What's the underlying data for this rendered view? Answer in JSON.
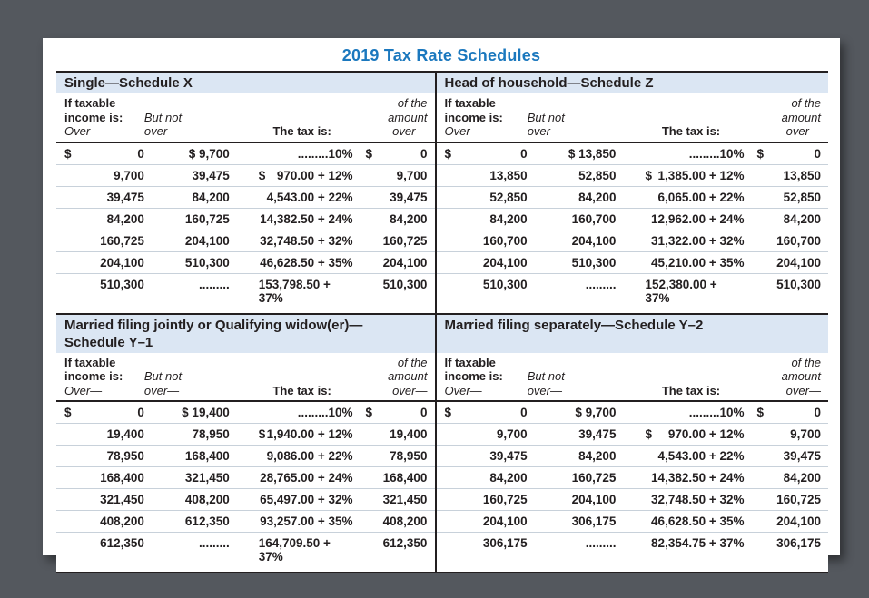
{
  "title": "2019 Tax Rate Schedules",
  "colors": {
    "title_blue": "#1b78be",
    "section_bar_blue": "#dbe6f3",
    "text_dark": "#231f20",
    "row_separator": "#c8d1da",
    "outer_background": "#54585e"
  },
  "column_headers": {
    "if_taxable": "If taxable",
    "income_is": "income is:",
    "over_left": "Over—",
    "but_not": "But not",
    "over_mid": "over—",
    "tax_is": "The tax is:",
    "of_the": "of the",
    "amount": "amount",
    "over_right": "over—"
  },
  "schedules": [
    {
      "title": "Single—Schedule X",
      "rows": [
        {
          "over": "0",
          "over_dollar": true,
          "but_not": "9,700",
          "but_not_dollar": true,
          "tax": ".........10%",
          "tax_dollar": false,
          "amount": "0",
          "amount_dollar": true
        },
        {
          "over": "9,700",
          "over_dollar": false,
          "but_not": "39,475",
          "but_not_dollar": false,
          "tax": "970.00 + 12%",
          "tax_dollar": true,
          "amount": "9,700",
          "amount_dollar": false
        },
        {
          "over": "39,475",
          "over_dollar": false,
          "but_not": "84,200",
          "but_not_dollar": false,
          "tax": "4,543.00 + 22%",
          "tax_dollar": false,
          "amount": "39,475",
          "amount_dollar": false
        },
        {
          "over": "84,200",
          "over_dollar": false,
          "but_not": "160,725",
          "but_not_dollar": false,
          "tax": "14,382.50 + 24%",
          "tax_dollar": false,
          "amount": "84,200",
          "amount_dollar": false
        },
        {
          "over": "160,725",
          "over_dollar": false,
          "but_not": "204,100",
          "but_not_dollar": false,
          "tax": "32,748.50 + 32%",
          "tax_dollar": false,
          "amount": "160,725",
          "amount_dollar": false
        },
        {
          "over": "204,100",
          "over_dollar": false,
          "but_not": "510,300",
          "but_not_dollar": false,
          "tax": "46,628.50 + 35%",
          "tax_dollar": false,
          "amount": "204,100",
          "amount_dollar": false
        },
        {
          "over": "510,300",
          "over_dollar": false,
          "but_not": ".........",
          "but_not_dollar": false,
          "tax": "153,798.50 + 37%",
          "tax_dollar": false,
          "amount": "510,300",
          "amount_dollar": false
        }
      ]
    },
    {
      "title": "Head of household—Schedule Z",
      "rows": [
        {
          "over": "0",
          "over_dollar": true,
          "but_not": "13,850",
          "but_not_dollar": true,
          "tax": ".........10%",
          "tax_dollar": false,
          "amount": "0",
          "amount_dollar": true
        },
        {
          "over": "13,850",
          "over_dollar": false,
          "but_not": "52,850",
          "but_not_dollar": false,
          "tax": "1,385.00 + 12%",
          "tax_dollar": true,
          "amount": "13,850",
          "amount_dollar": false
        },
        {
          "over": "52,850",
          "over_dollar": false,
          "but_not": "84,200",
          "but_not_dollar": false,
          "tax": "6,065.00 + 22%",
          "tax_dollar": false,
          "amount": "52,850",
          "amount_dollar": false
        },
        {
          "over": "84,200",
          "over_dollar": false,
          "but_not": "160,700",
          "but_not_dollar": false,
          "tax": "12,962.00 + 24%",
          "tax_dollar": false,
          "amount": "84,200",
          "amount_dollar": false
        },
        {
          "over": "160,700",
          "over_dollar": false,
          "but_not": "204,100",
          "but_not_dollar": false,
          "tax": "31,322.00 + 32%",
          "tax_dollar": false,
          "amount": "160,700",
          "amount_dollar": false
        },
        {
          "over": "204,100",
          "over_dollar": false,
          "but_not": "510,300",
          "but_not_dollar": false,
          "tax": "45,210.00 + 35%",
          "tax_dollar": false,
          "amount": "204,100",
          "amount_dollar": false
        },
        {
          "over": "510,300",
          "over_dollar": false,
          "but_not": ".........",
          "but_not_dollar": false,
          "tax": "152,380.00 + 37%",
          "tax_dollar": false,
          "amount": "510,300",
          "amount_dollar": false
        }
      ]
    },
    {
      "title": "Married filing jointly or Qualifying widow(er)—\nSchedule Y–1",
      "rows": [
        {
          "over": "0",
          "over_dollar": true,
          "but_not": "19,400",
          "but_not_dollar": true,
          "tax": ".........10%",
          "tax_dollar": false,
          "amount": "0",
          "amount_dollar": true
        },
        {
          "over": "19,400",
          "over_dollar": false,
          "but_not": "78,950",
          "but_not_dollar": false,
          "tax": "1,940.00 + 12%",
          "tax_dollar": true,
          "amount": "19,400",
          "amount_dollar": false
        },
        {
          "over": "78,950",
          "over_dollar": false,
          "but_not": "168,400",
          "but_not_dollar": false,
          "tax": "9,086.00 + 22%",
          "tax_dollar": false,
          "amount": "78,950",
          "amount_dollar": false
        },
        {
          "over": "168,400",
          "over_dollar": false,
          "but_not": "321,450",
          "but_not_dollar": false,
          "tax": "28,765.00 + 24%",
          "tax_dollar": false,
          "amount": "168,400",
          "amount_dollar": false
        },
        {
          "over": "321,450",
          "over_dollar": false,
          "but_not": "408,200",
          "but_not_dollar": false,
          "tax": "65,497.00 + 32%",
          "tax_dollar": false,
          "amount": "321,450",
          "amount_dollar": false
        },
        {
          "over": "408,200",
          "over_dollar": false,
          "but_not": "612,350",
          "but_not_dollar": false,
          "tax": "93,257.00 + 35%",
          "tax_dollar": false,
          "amount": "408,200",
          "amount_dollar": false
        },
        {
          "over": "612,350",
          "over_dollar": false,
          "but_not": ".........",
          "but_not_dollar": false,
          "tax": "164,709.50 + 37%",
          "tax_dollar": false,
          "amount": "612,350",
          "amount_dollar": false
        }
      ]
    },
    {
      "title": "Married filing separately—Schedule Y–2",
      "rows": [
        {
          "over": "0",
          "over_dollar": true,
          "but_not": "9,700",
          "but_not_dollar": true,
          "tax": ".........10%",
          "tax_dollar": false,
          "amount": "0",
          "amount_dollar": true
        },
        {
          "over": "9,700",
          "over_dollar": false,
          "but_not": "39,475",
          "but_not_dollar": false,
          "tax": "970.00 + 12%",
          "tax_dollar": true,
          "amount": "9,700",
          "amount_dollar": false
        },
        {
          "over": "39,475",
          "over_dollar": false,
          "but_not": "84,200",
          "but_not_dollar": false,
          "tax": "4,543.00 + 22%",
          "tax_dollar": false,
          "amount": "39,475",
          "amount_dollar": false
        },
        {
          "over": "84,200",
          "over_dollar": false,
          "but_not": "160,725",
          "but_not_dollar": false,
          "tax": "14,382.50 + 24%",
          "tax_dollar": false,
          "amount": "84,200",
          "amount_dollar": false
        },
        {
          "over": "160,725",
          "over_dollar": false,
          "but_not": "204,100",
          "but_not_dollar": false,
          "tax": "32,748.50 + 32%",
          "tax_dollar": false,
          "amount": "160,725",
          "amount_dollar": false
        },
        {
          "over": "204,100",
          "over_dollar": false,
          "but_not": "306,175",
          "but_not_dollar": false,
          "tax": "46,628.50 + 35%",
          "tax_dollar": false,
          "amount": "204,100",
          "amount_dollar": false
        },
        {
          "over": "306,175",
          "over_dollar": false,
          "but_not": ".........",
          "but_not_dollar": false,
          "tax": "82,354.75 + 37%",
          "tax_dollar": false,
          "amount": "306,175",
          "amount_dollar": false
        }
      ]
    }
  ]
}
